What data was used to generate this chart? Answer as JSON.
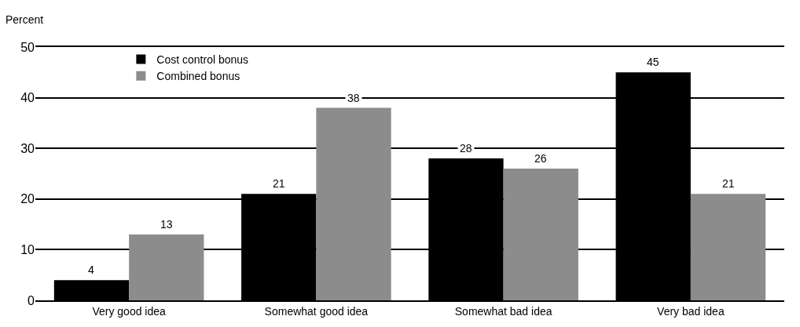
{
  "chart_data": {
    "type": "bar",
    "ylabel": "Percent",
    "categories": [
      "Very good idea",
      "Somewhat good idea",
      "Somewhat bad idea",
      "Very bad idea"
    ],
    "series": [
      {
        "name": "Cost control bonus",
        "color": "#000000",
        "values": [
          4,
          21,
          28,
          45
        ]
      },
      {
        "name": "Combined bonus",
        "color": "#8c8c8c",
        "values": [
          13,
          38,
          26,
          21
        ]
      }
    ],
    "ylim": [
      0,
      50
    ],
    "yticks": [
      0,
      10,
      20,
      30,
      40,
      50
    ],
    "grid": "y",
    "legend": "top left",
    "data_labels": true
  }
}
